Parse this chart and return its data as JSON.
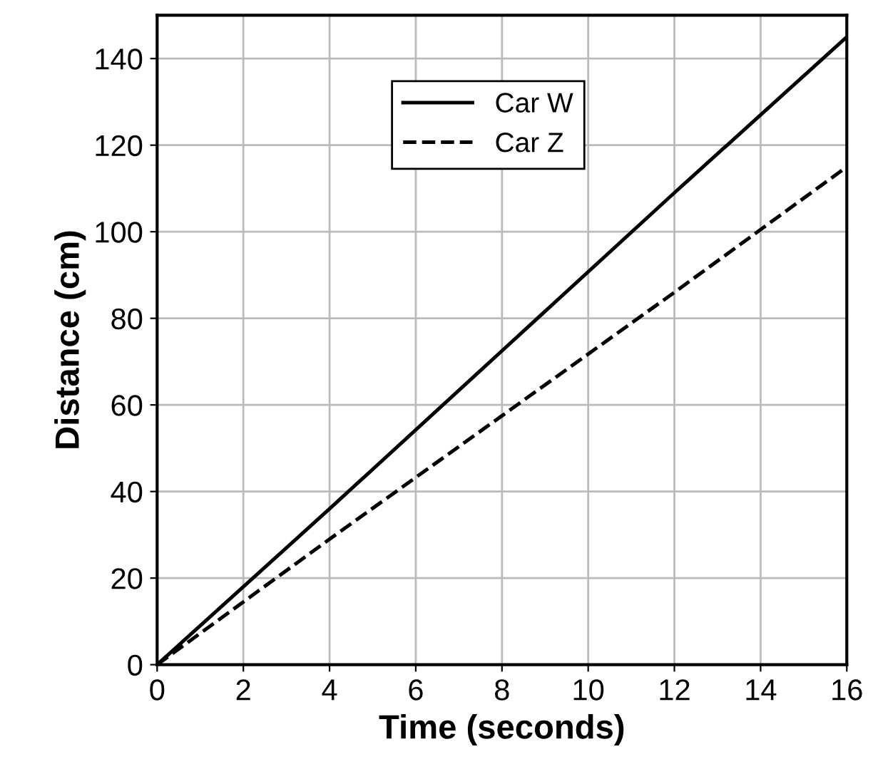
{
  "chart_data": {
    "type": "line",
    "xlabel": "Time (seconds)",
    "ylabel": "Distance (cm)",
    "xlim": [
      0,
      16
    ],
    "ylim": [
      0,
      150
    ],
    "xticks": [
      0,
      2,
      4,
      6,
      8,
      10,
      12,
      14,
      16
    ],
    "yticks": [
      0,
      20,
      40,
      60,
      80,
      100,
      120,
      140
    ],
    "grid": true,
    "legend": "top",
    "marker": "none",
    "series": [
      {
        "name": "Car W",
        "color": "#000000",
        "line_style": "solid",
        "x": [
          0,
          4,
          8,
          12,
          16
        ],
        "values": [
          0,
          36,
          72.5,
          109,
          145
        ]
      },
      {
        "name": "Car Z",
        "color": "#000000",
        "line_style": "dashed",
        "x": [
          0,
          4,
          8,
          12,
          16
        ],
        "values": [
          0,
          29,
          57.5,
          86,
          115
        ]
      }
    ]
  }
}
